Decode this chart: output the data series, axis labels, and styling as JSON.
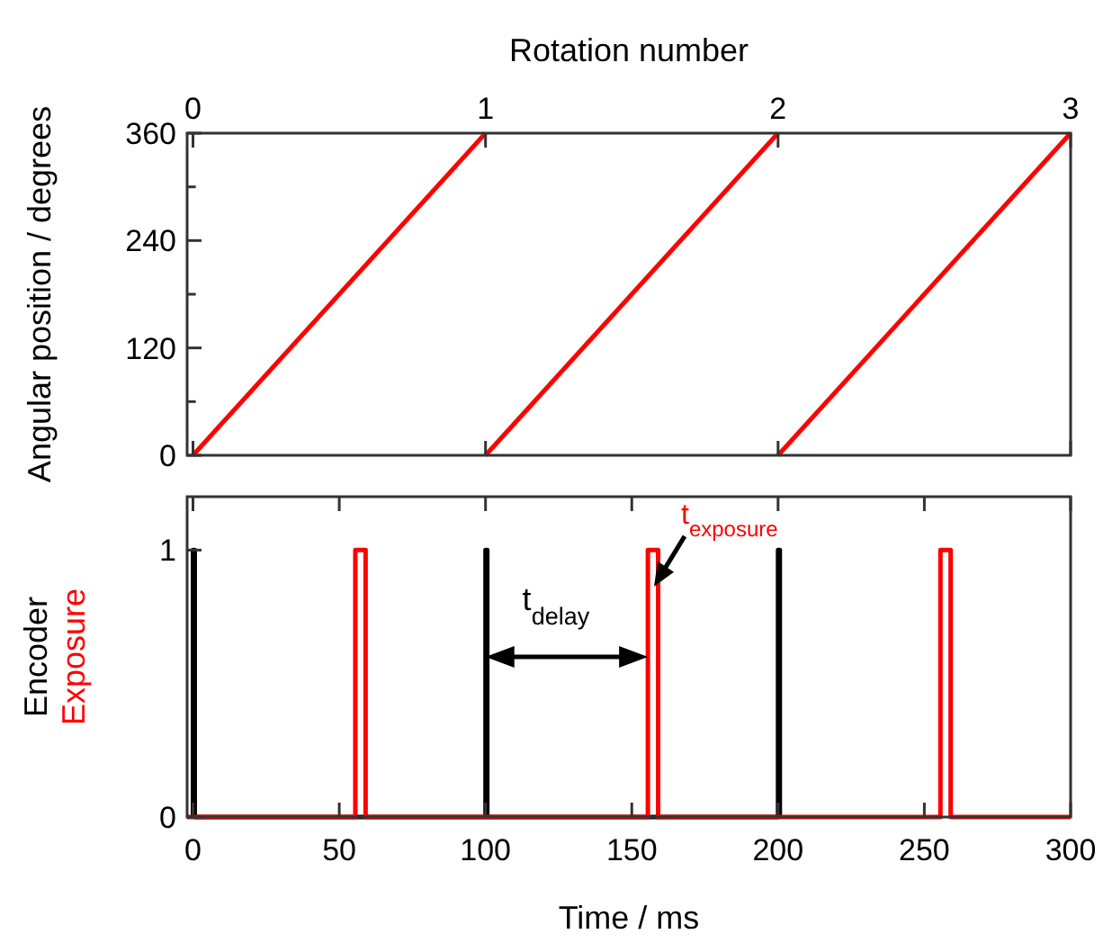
{
  "chart_data": [
    {
      "type": "line",
      "xlabel": "Rotation number",
      "ylabel": "Angular position / degrees",
      "xlim": [
        -0.02,
        3
      ],
      "ylim": [
        0,
        360
      ],
      "xticks": [
        0,
        1,
        2,
        3
      ],
      "yticks": [
        0,
        {
          "value": 60,
          "label": null
        },
        120,
        {
          "value": 180,
          "label": null
        },
        240,
        {
          "value": 300,
          "label": null
        },
        360
      ],
      "series": [
        {
          "color": "#ff0000",
          "x": [
            0,
            1
          ],
          "values": [
            0,
            360
          ]
        },
        {
          "color": "#ff0000",
          "x": [
            1,
            2
          ],
          "values": [
            0,
            360
          ]
        },
        {
          "color": "#ff0000",
          "x": [
            2,
            3
          ],
          "values": [
            0,
            360
          ]
        }
      ]
    },
    {
      "type": "line",
      "xlabel": "Time / ms",
      "xlim": [
        -2,
        300
      ],
      "ylim": [
        0,
        1.2
      ],
      "xticks": [
        0,
        50,
        100,
        150,
        200,
        250,
        300
      ],
      "yticks": [
        0,
        1
      ],
      "series": [
        {
          "name": "Encoder",
          "color": "#000000",
          "x": [
            0,
            0,
            0.6,
            0.6,
            100,
            100,
            100.6,
            100.6,
            200,
            200,
            200.6,
            200.6
          ],
          "values": [
            0,
            1,
            1,
            0,
            0,
            1,
            1,
            0,
            0,
            1,
            1,
            0
          ]
        },
        {
          "name": "Exposure",
          "color": "#ff0000",
          "x": [
            -2,
            55.5,
            55.5,
            59,
            59,
            155.5,
            155.5,
            159,
            159,
            255.5,
            255.5,
            259,
            259,
            300
          ],
          "values": [
            0,
            0,
            1,
            1,
            0,
            0,
            1,
            1,
            0,
            0,
            1,
            1,
            0,
            0
          ]
        }
      ],
      "annotations": [
        "t$_{delay}$",
        {
          "text": "t$_{exposure}$",
          "x": 157,
          "y": 0.85
        }
      ]
    }
  ]
}
